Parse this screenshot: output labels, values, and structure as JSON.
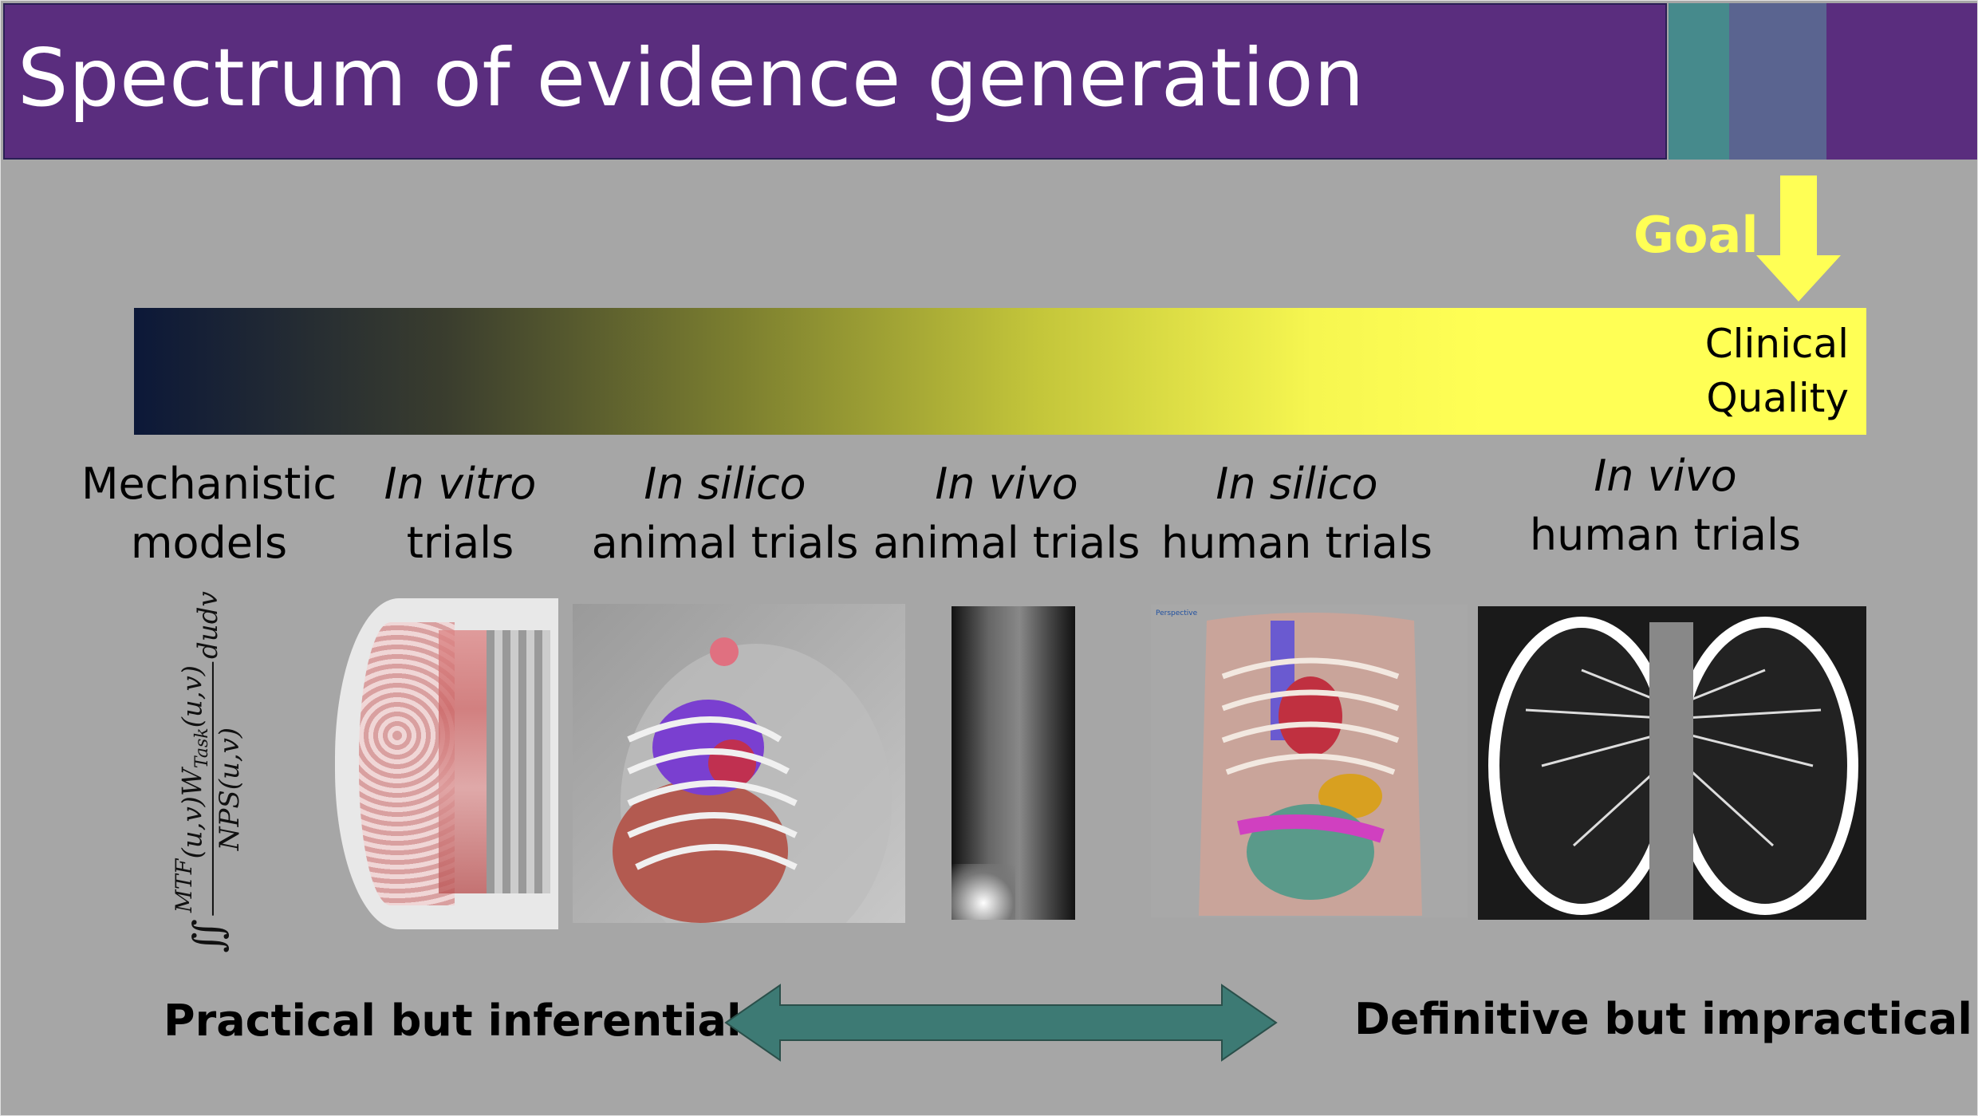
{
  "slide": {
    "title": "Spectrum of evidence generation",
    "goal_label": "Goal",
    "spectrum_end_label": [
      "Clinical",
      "Quality"
    ],
    "formula": "∬ MTF(u,v) W_Task(u,v) / NPS(u,v) dudv",
    "formula_parts": {
      "integral": "∬",
      "numerator_a": "MTF",
      "numerator_b": "(u,v)",
      "numerator_c": "W",
      "task_sub": "Task",
      "numerator_d": "(u,v)",
      "denominator": "NPS(u,v)",
      "differential": "dudv"
    },
    "categories": [
      {
        "line1": "Mechanistic",
        "line2": "models",
        "italic_line1": false
      },
      {
        "line1": "In vitro",
        "line2": "trials",
        "italic_line1": true
      },
      {
        "line1": "In silico",
        "line2": "animal trials",
        "italic_line1": true
      },
      {
        "line1": "In vivo",
        "line2": "animal trials",
        "italic_line1": true
      },
      {
        "line1": "In silico",
        "line2": "human trials",
        "italic_line1": true
      },
      {
        "line1": "In vivo",
        "line2": "human trials",
        "italic_line1": true
      }
    ],
    "viewport_label": "Perspective",
    "left_caption": "Practical but inferential",
    "right_caption": "Definitive but impractical"
  },
  "colors": {
    "header_purple": "#5a2d7e",
    "strip_teal": "#468a8c",
    "strip_slate": "#5a6490",
    "background_gray": "#a6a6a6",
    "goal_yellow": "#ffff55",
    "gradient_start": "#0c1838",
    "gradient_end": "#ffff55",
    "double_arrow_teal": "#3d7a74"
  },
  "icons": {
    "goal_arrow": "arrow-down-icon",
    "tradeoff_arrow": "double-arrow-icon"
  }
}
